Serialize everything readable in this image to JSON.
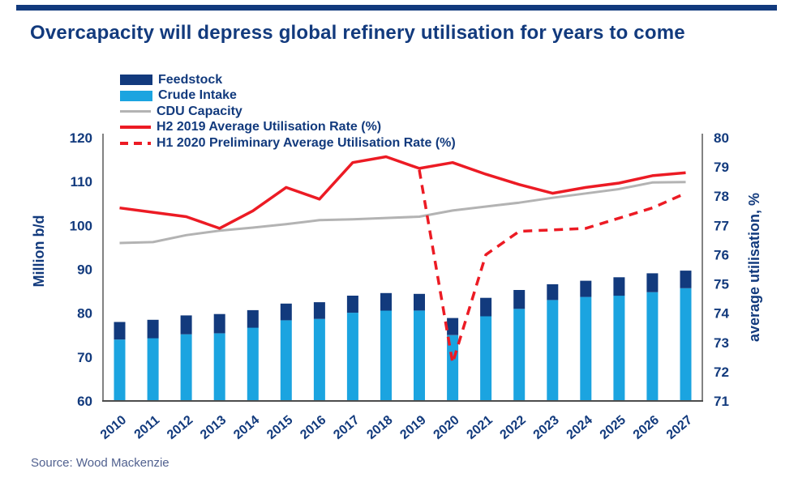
{
  "title": "Overcapacity will depress global refinery utilisation for years to come",
  "source": "Source: Wood Mackenzie",
  "colors": {
    "navy": "#123a7d",
    "lightblue": "#1ba4e0",
    "gray": "#b3b3b3",
    "red": "#ec1b24",
    "axis": "#4d4d4d",
    "source_text": "#51618f"
  },
  "legend": {
    "position": "top-left"
  },
  "chart_data": {
    "type": "bar",
    "subtype": "stacked-bar-with-lines-dual-axis",
    "categories": [
      "2010",
      "2011",
      "2012",
      "2013",
      "2014",
      "2015",
      "2016",
      "2017",
      "2018",
      "2019",
      "2020",
      "2021",
      "2022",
      "2023",
      "2024",
      "2025",
      "2026",
      "2027"
    ],
    "axis_left": {
      "title": "Million b/d",
      "min": 60,
      "max": 120,
      "step": 10
    },
    "axis_right": {
      "title": "average utilisation, %",
      "min": 71,
      "max": 80,
      "step": 1
    },
    "grid": false,
    "legend_position": "top-left",
    "series": [
      {
        "name": "Feedstock",
        "type": "bar",
        "stack": "volume",
        "axis": "left",
        "color_key": "navy",
        "values": [
          4.0,
          4.2,
          4.3,
          4.4,
          4.0,
          3.8,
          3.8,
          3.9,
          4.0,
          3.8,
          3.9,
          4.2,
          4.3,
          3.6,
          3.7,
          4.2,
          4.3,
          4.0
        ]
      },
      {
        "name": "Crude Intake",
        "type": "bar",
        "stack": "volume",
        "axis": "left",
        "color_key": "lightblue",
        "values": [
          74.0,
          74.3,
          75.2,
          75.4,
          76.7,
          78.4,
          78.7,
          80.1,
          80.6,
          80.6,
          75.0,
          79.3,
          81.0,
          83.0,
          83.7,
          84.0,
          84.8,
          85.7
        ]
      },
      {
        "name": "CDU Capacity",
        "type": "line",
        "axis": "left",
        "color_key": "gray",
        "dash": false,
        "values": [
          96.0,
          96.2,
          97.8,
          98.8,
          99.5,
          100.3,
          101.2,
          101.4,
          101.7,
          102.0,
          103.4,
          104.3,
          105.2,
          106.3,
          107.3,
          108.3,
          109.8,
          109.9
        ]
      },
      {
        "name": "H2 2019 Average Utilisation Rate (%)",
        "type": "line",
        "axis": "right",
        "color_key": "red",
        "dash": false,
        "values": [
          77.6,
          77.45,
          77.3,
          76.9,
          77.5,
          78.3,
          77.9,
          79.15,
          79.35,
          78.95,
          79.15,
          78.75,
          78.4,
          78.1,
          78.3,
          78.45,
          78.7,
          78.8
        ]
      },
      {
        "name": "H1 2020 Preliminary Average Utilisation Rate (%)",
        "type": "line",
        "axis": "right",
        "color_key": "red",
        "dash": true,
        "values": [
          null,
          null,
          null,
          null,
          null,
          null,
          null,
          null,
          null,
          78.9,
          72.3,
          76.0,
          76.8,
          76.85,
          76.9,
          77.25,
          77.6,
          78.1
        ]
      }
    ]
  }
}
